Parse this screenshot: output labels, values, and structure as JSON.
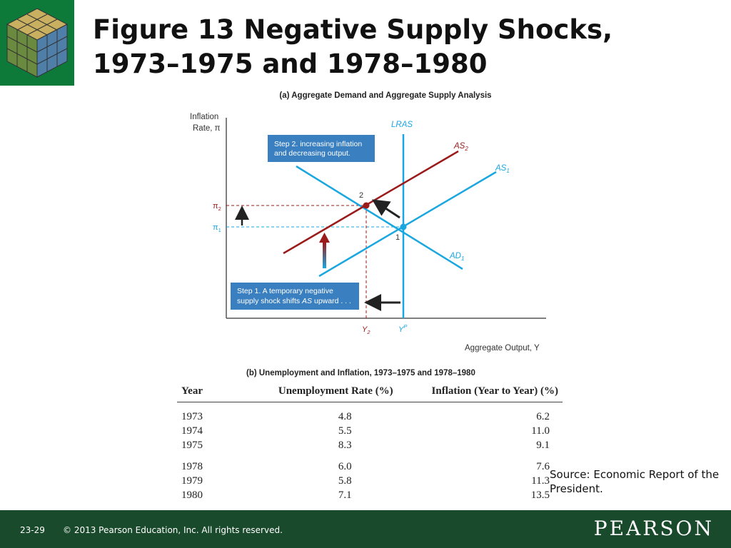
{
  "slide": {
    "title_line1": "Figure 13  Negative Supply Shocks,",
    "title_line2": "1973–1975 and 1978–1980",
    "source": "Source: Economic Report of the President.",
    "footer": {
      "slide_number": "23-29",
      "copyright": "© 2013 Pearson Education, Inc. All rights reserved.",
      "brand": "PEARSON"
    },
    "colors": {
      "brand_green": "#0d7a3a",
      "footer_green": "#1a4a2c",
      "curve_blue": "#1aa7e0",
      "curve_red": "#9b1b1b",
      "box_blue": "#3a7fc0"
    }
  },
  "diagram": {
    "panel_title": "(a) Aggregate Demand and Aggregate Supply Analysis",
    "y_axis_label_line1": "Inflation",
    "y_axis_label_line2": "Rate, π",
    "x_axis_label": "Aggregate Output, Y",
    "curves": {
      "lras": "LRAS",
      "as2": "AS",
      "as2_sub": "2",
      "as1": "AS",
      "as1_sub": "1",
      "ad1": "AD",
      "ad1_sub": "1"
    },
    "ticks": {
      "pi2": "π",
      "pi2_sub": "2",
      "pi1": "π",
      "pi1_sub": "1",
      "y2": "Y",
      "y2_sub": "2",
      "yp": "Y",
      "yp_sup": "P"
    },
    "points": {
      "point1": "1",
      "point2": "2"
    },
    "step1_line1": "Step 1. A temporary negative",
    "step1_line2_pre": "supply shock shifts ",
    "step1_line2_em": "AS",
    "step1_line2_post": " upward . . .",
    "step2_line1": "Step 2. increasing inflation",
    "step2_line2": "and decreasing output."
  },
  "table": {
    "title": "(b) Unemployment and Inflation, 1973–1975 and 1978–1980",
    "headers": [
      "Year",
      "Unemployment Rate (%)",
      "Inflation (Year to Year) (%)"
    ],
    "rows": [
      [
        "1973",
        "4.8",
        "6.2"
      ],
      [
        "1974",
        "5.5",
        "11.0"
      ],
      [
        "1975",
        "8.3",
        "9.1"
      ],
      [
        "1978",
        "6.0",
        "7.6"
      ],
      [
        "1979",
        "5.8",
        "11.3"
      ],
      [
        "1980",
        "7.1",
        "13.5"
      ]
    ]
  }
}
